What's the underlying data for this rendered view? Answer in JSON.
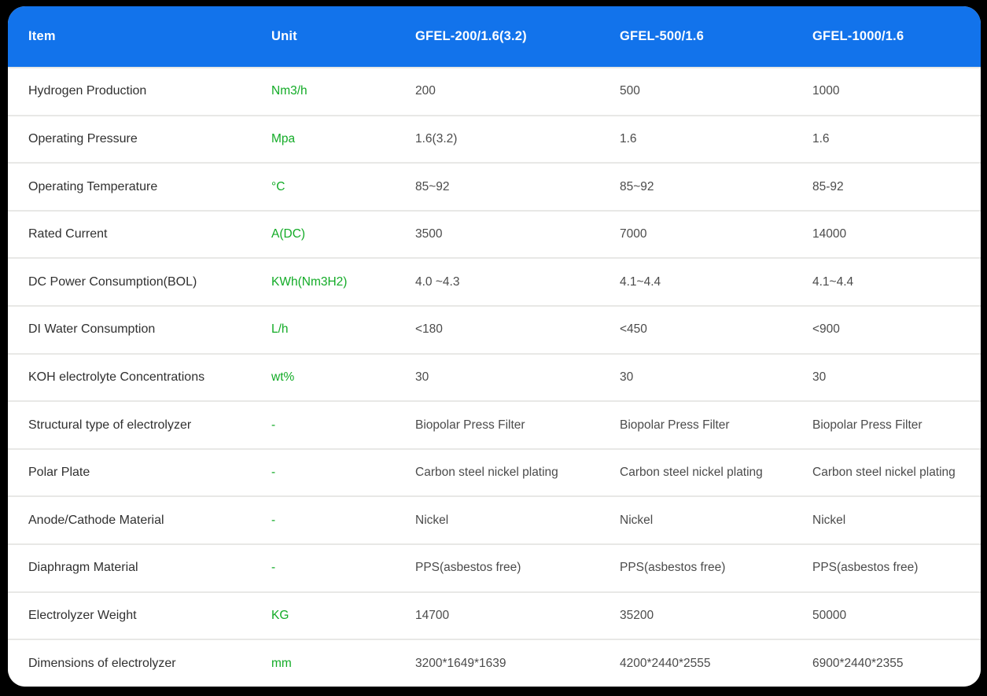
{
  "colors": {
    "header_bg": "#1273EB",
    "unit_text": "#12AB26",
    "card_bg": "#FFFFFF",
    "page_bg": "#000000",
    "divider": "#E8E8E6"
  },
  "table": {
    "columns": [
      "Item",
      "Unit",
      "GFEL-200/1.6(3.2)",
      "GFEL-500/1.6",
      "GFEL-1000/1.6"
    ],
    "rows": [
      {
        "item": "Hydrogen Production",
        "unit": "Nm3/h",
        "values": [
          "200",
          "500",
          "1000"
        ]
      },
      {
        "item": "Operating Pressure",
        "unit": "Mpa",
        "values": [
          "1.6(3.2)",
          "1.6",
          "1.6"
        ]
      },
      {
        "item": "Operating Temperature",
        "unit": "°C",
        "values": [
          "85~92",
          "85~92",
          "85-92"
        ]
      },
      {
        "item": "Rated Current",
        "unit": "A(DC)",
        "values": [
          "3500",
          "7000",
          "14000"
        ]
      },
      {
        "item": "DC Power Consumption(BOL)",
        "unit": "KWh(Nm3H2)",
        "values": [
          "4.0 ~4.3",
          "4.1~4.4",
          "4.1~4.4"
        ]
      },
      {
        "item": "DI Water Consumption",
        "unit": "L/h",
        "values": [
          "<180",
          "<450",
          "<900"
        ]
      },
      {
        "item": "KOH electrolyte Concentrations",
        "unit": "wt%",
        "values": [
          "30",
          "30",
          "30"
        ]
      },
      {
        "item": "Structural type of  electrolyzer",
        "unit": "-",
        "values": [
          "Biopolar Press Filter",
          "Biopolar Press Filter",
          "Biopolar Press Filter"
        ]
      },
      {
        "item": "Polar Plate",
        "unit": "-",
        "values": [
          "Carbon steel nickel plating",
          "Carbon steel nickel plating",
          "Carbon steel nickel plating"
        ]
      },
      {
        "item": "Anode/Cathode Material",
        "unit": "-",
        "values": [
          "Nickel",
          "Nickel",
          "Nickel"
        ]
      },
      {
        "item": "Diaphragm Material",
        "unit": "-",
        "values": [
          "PPS(asbestos free)",
          "PPS(asbestos free)",
          "PPS(asbestos free)"
        ]
      },
      {
        "item": "Electrolyzer Weight",
        "unit": "KG",
        "values": [
          "14700",
          "35200",
          "50000"
        ]
      },
      {
        "item": "Dimensions of electrolyzer",
        "unit": "mm",
        "values": [
          "3200*1649*1639",
          "4200*2440*2555",
          "6900*2440*2355"
        ]
      }
    ]
  }
}
